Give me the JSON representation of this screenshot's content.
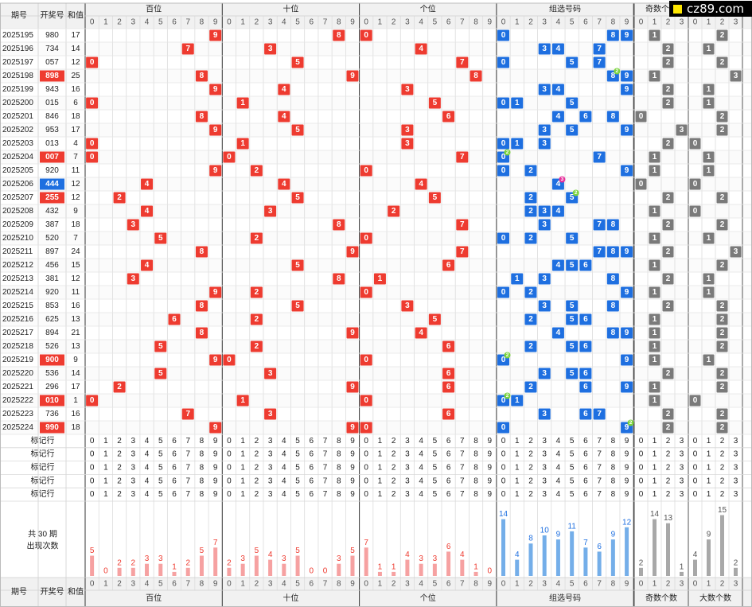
{
  "logo": "cz89.com",
  "headers": {
    "period": "期号",
    "number": "开奖号",
    "sum": "和值",
    "groups": [
      "百位",
      "十位",
      "个位",
      "组选号码",
      "奇数个数",
      "大数个数"
    ],
    "digits": [
      "0",
      "1",
      "2",
      "3",
      "4",
      "5",
      "6",
      "7",
      "8",
      "9"
    ],
    "counts": [
      "0",
      "1",
      "2",
      "3"
    ]
  },
  "colors": {
    "red": "#ee3b30",
    "blue": "#1e6fe0",
    "gray": "#7a7a7a",
    "red_bar": "#f6a1a1",
    "blue_bar": "#74aee9",
    "gray_bar": "#a8a8a8",
    "header_bg": "#f1f1f1",
    "badge_green": "#7bd33d",
    "badge_pink": "#e62f9b"
  },
  "marker_row_label": "标记行",
  "summary_label": [
    "共 30 期",
    "出现次数"
  ],
  "chart_data": {
    "type": "table",
    "draws": [
      {
        "period": "2025195",
        "number": "980",
        "sum": "17"
      },
      {
        "period": "2025196",
        "number": "734",
        "sum": "14"
      },
      {
        "period": "2025197",
        "number": "057",
        "sum": "12"
      },
      {
        "period": "2025198",
        "number": "898",
        "sum": "25",
        "hl": "red"
      },
      {
        "period": "2025199",
        "number": "943",
        "sum": "16"
      },
      {
        "period": "2025200",
        "number": "015",
        "sum": "6"
      },
      {
        "period": "2025201",
        "number": "846",
        "sum": "18"
      },
      {
        "period": "2025202",
        "number": "953",
        "sum": "17"
      },
      {
        "period": "2025203",
        "number": "013",
        "sum": "4"
      },
      {
        "period": "2025204",
        "number": "007",
        "sum": "7",
        "hl": "red"
      },
      {
        "period": "2025205",
        "number": "920",
        "sum": "11"
      },
      {
        "period": "2025206",
        "number": "444",
        "sum": "12",
        "hl": "blue"
      },
      {
        "period": "2025207",
        "number": "255",
        "sum": "12",
        "hl": "red"
      },
      {
        "period": "2025208",
        "number": "432",
        "sum": "9"
      },
      {
        "period": "2025209",
        "number": "387",
        "sum": "18"
      },
      {
        "period": "2025210",
        "number": "520",
        "sum": "7"
      },
      {
        "period": "2025211",
        "number": "897",
        "sum": "24"
      },
      {
        "period": "2025212",
        "number": "456",
        "sum": "15"
      },
      {
        "period": "2025213",
        "number": "381",
        "sum": "12"
      },
      {
        "period": "2025214",
        "number": "920",
        "sum": "11"
      },
      {
        "period": "2025215",
        "number": "853",
        "sum": "16"
      },
      {
        "period": "2025216",
        "number": "625",
        "sum": "13"
      },
      {
        "period": "2025217",
        "number": "894",
        "sum": "21"
      },
      {
        "period": "2025218",
        "number": "526",
        "sum": "13"
      },
      {
        "period": "2025219",
        "number": "900",
        "sum": "9",
        "hl": "red"
      },
      {
        "period": "2025220",
        "number": "536",
        "sum": "14"
      },
      {
        "period": "2025221",
        "number": "296",
        "sum": "17"
      },
      {
        "period": "2025222",
        "number": "010",
        "sum": "1",
        "hl": "red"
      },
      {
        "period": "2025223",
        "number": "736",
        "sum": "16"
      },
      {
        "period": "2025224",
        "number": "990",
        "sum": "18",
        "hl": "red"
      }
    ],
    "occurrence_counts": {
      "hundreds": [
        5,
        0,
        2,
        2,
        3,
        3,
        1,
        2,
        5,
        7
      ],
      "tens": [
        2,
        3,
        5,
        4,
        3,
        5,
        0,
        0,
        3,
        5
      ],
      "units": [
        7,
        1,
        1,
        4,
        3,
        3,
        6,
        4,
        1,
        0
      ],
      "group": [
        14,
        4,
        8,
        10,
        9,
        11,
        7,
        6,
        9,
        12
      ],
      "odd_count": [
        2,
        14,
        13,
        1
      ],
      "big_count": [
        4,
        9,
        15,
        2
      ]
    }
  }
}
